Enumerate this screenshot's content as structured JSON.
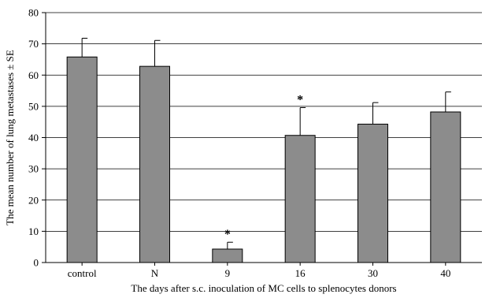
{
  "chart_data": {
    "type": "bar",
    "categories": [
      "control",
      "N",
      "9",
      "16",
      "30",
      "40"
    ],
    "values": [
      65.8,
      62.8,
      4.3,
      40.7,
      44.3,
      48.2
    ],
    "errors": [
      6.0,
      8.3,
      2.2,
      8.9,
      6.9,
      6.4
    ],
    "significant": [
      false,
      false,
      true,
      true,
      false,
      false
    ],
    "significance_marker": "*",
    "xlabel": "The days after s.c. inoculation of MC cells to splenocytes donors",
    "ylabel": "The mean number of lung metastases ± SE",
    "ylim": [
      0,
      80
    ],
    "yticks": [
      0,
      10,
      20,
      30,
      40,
      50,
      60,
      70,
      80
    ],
    "grid": true,
    "bar_color": "#8c8c8c"
  }
}
